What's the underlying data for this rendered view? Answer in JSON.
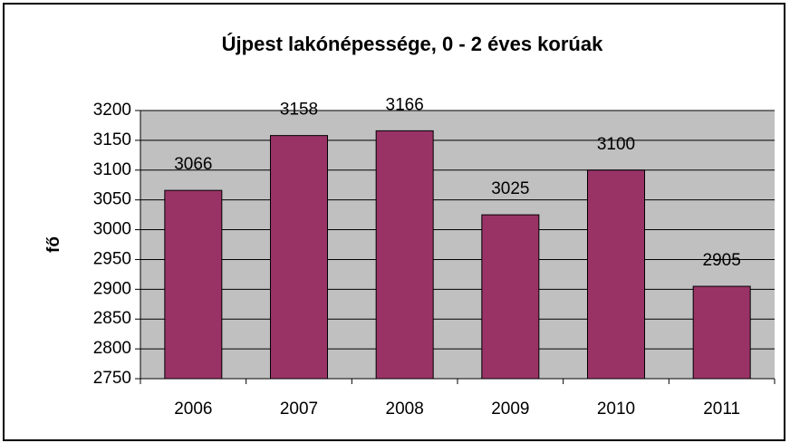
{
  "chart_data": {
    "type": "bar",
    "title": "Újpest lakónépessége, 0 - 2 éves korúak",
    "y_label": "fő",
    "categories": [
      "2006",
      "2007",
      "2008",
      "2009",
      "2010",
      "2011"
    ],
    "values": [
      3066,
      3158,
      3166,
      3025,
      3100,
      2905
    ],
    "color": "#993366",
    "ylim": [
      2750,
      3200
    ],
    "yticks": [
      2750,
      2800,
      2850,
      2900,
      2950,
      3000,
      3050,
      3100,
      3150,
      3200
    ],
    "grid": true
  }
}
